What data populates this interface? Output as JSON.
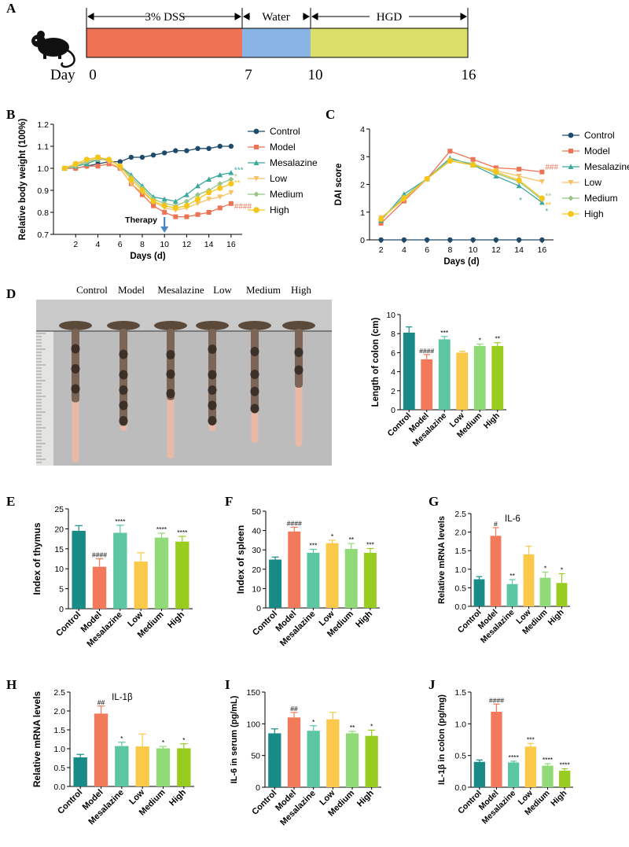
{
  "panels": {
    "A": "A",
    "B": "B",
    "C": "C",
    "D": "D",
    "E": "E",
    "F": "F",
    "G": "G",
    "H": "H",
    "I": "I",
    "J": "J"
  },
  "timeline": {
    "phase1": "3% DSS",
    "phase2": "Water",
    "phase3": "HGD",
    "day_label": "Day",
    "days": [
      "0",
      "7",
      "10",
      "16"
    ],
    "colors": {
      "dss": "#EE7355",
      "water": "#89B4E6",
      "hgd": "#DCE069"
    }
  },
  "groups": [
    "Control",
    "Model",
    "Mesalazine",
    "Low",
    "Medium",
    "High"
  ],
  "group_colors": [
    "#1E4B6B",
    "#EE7355",
    "#3BA89C",
    "#F8C264",
    "#99C58A",
    "#F5C518"
  ],
  "bar_colors": [
    "#188B86",
    "#F27A5A",
    "#5CC6A2",
    "#FBC94A",
    "#90DB77",
    "#98CC1E"
  ],
  "photo": {
    "labels": [
      "Control",
      "Model",
      "Mesalazine",
      "Low",
      "Medium",
      "High"
    ]
  },
  "chart_data": [
    {
      "id": "B",
      "type": "line",
      "title": "",
      "xlabel": "Days (d)",
      "ylabel": "Relative body weight (100%)",
      "xlim": [
        0,
        17
      ],
      "ylim": [
        0.7,
        1.2
      ],
      "xticks": [
        2,
        4,
        6,
        8,
        10,
        12,
        14,
        16
      ],
      "yticks": [
        0.7,
        0.8,
        0.9,
        1.0,
        1.1,
        1.2
      ],
      "ytick_labels": [
        "0.7",
        "0.8",
        "0.9",
        "1.0",
        "1.1",
        "1.2"
      ],
      "x": [
        1,
        2,
        3,
        4,
        5,
        6,
        7,
        8,
        9,
        10,
        11,
        12,
        13,
        14,
        15,
        16
      ],
      "series": [
        {
          "name": "Control",
          "values": [
            1.0,
            1.0,
            1.01,
            1.02,
            1.03,
            1.03,
            1.05,
            1.05,
            1.06,
            1.07,
            1.08,
            1.08,
            1.09,
            1.09,
            1.1,
            1.1
          ]
        },
        {
          "name": "Model",
          "values": [
            1.0,
            1.0,
            1.01,
            1.01,
            1.02,
            1.0,
            0.93,
            0.88,
            0.83,
            0.8,
            0.78,
            0.78,
            0.79,
            0.8,
            0.82,
            0.84
          ]
        },
        {
          "name": "Mesalazine",
          "values": [
            1.0,
            1.01,
            1.02,
            1.04,
            1.04,
            1.01,
            0.97,
            0.92,
            0.87,
            0.86,
            0.85,
            0.88,
            0.92,
            0.95,
            0.97,
            0.98
          ]
        },
        {
          "name": "Low",
          "values": [
            1.0,
            1.02,
            1.03,
            1.05,
            1.03,
            1.0,
            0.93,
            0.89,
            0.85,
            0.82,
            0.81,
            0.82,
            0.84,
            0.86,
            0.87,
            0.89
          ]
        },
        {
          "name": "Medium",
          "values": [
            1.0,
            1.01,
            1.03,
            1.04,
            1.04,
            1.01,
            0.96,
            0.91,
            0.86,
            0.84,
            0.83,
            0.85,
            0.88,
            0.9,
            0.93,
            0.95
          ]
        },
        {
          "name": "High",
          "values": [
            1.0,
            1.02,
            1.04,
            1.05,
            1.04,
            1.01,
            0.95,
            0.9,
            0.85,
            0.83,
            0.82,
            0.83,
            0.86,
            0.89,
            0.91,
            0.93
          ]
        }
      ],
      "annotations": {
        "therapy": "Therapy",
        "sig": [
          {
            "text": "***",
            "series": "Mesalazine",
            "y": 0.995
          },
          {
            "text": "*",
            "series": "Medium",
            "y": 0.965
          },
          {
            "text": "**",
            "series": "High",
            "y": 0.935
          },
          {
            "text": "####",
            "series": "Model",
            "y": 0.83
          }
        ]
      }
    },
    {
      "id": "C",
      "type": "line",
      "title": "",
      "xlabel": "Days (d)",
      "ylabel": "DAI score",
      "xlim": [
        1,
        17
      ],
      "ylim": [
        0,
        4
      ],
      "xticks": [
        2,
        4,
        6,
        8,
        10,
        12,
        14,
        16
      ],
      "yticks": [
        0,
        1,
        2,
        3,
        4
      ],
      "x": [
        2,
        4,
        6,
        8,
        10,
        12,
        14,
        16
      ],
      "series": [
        {
          "name": "Control",
          "values": [
            0,
            0,
            0,
            0,
            0,
            0,
            0,
            0
          ]
        },
        {
          "name": "Model",
          "values": [
            0.6,
            1.4,
            2.2,
            3.2,
            2.9,
            2.6,
            2.55,
            2.45
          ]
        },
        {
          "name": "Mesalazine",
          "values": [
            0.7,
            1.65,
            2.2,
            2.95,
            2.7,
            2.3,
            1.95,
            1.35
          ]
        },
        {
          "name": "Low",
          "values": [
            0.8,
            1.45,
            2.2,
            2.85,
            2.7,
            2.5,
            2.3,
            2.1
          ]
        },
        {
          "name": "Medium",
          "values": [
            0.75,
            1.55,
            2.2,
            2.9,
            2.75,
            2.4,
            2.1,
            1.45
          ]
        },
        {
          "name": "High",
          "values": [
            0.75,
            1.5,
            2.2,
            2.85,
            2.7,
            2.45,
            2.15,
            1.5
          ]
        }
      ],
      "annotations": {
        "sig": [
          {
            "text": "###",
            "series": "Model",
            "y": 2.65
          },
          {
            "text": "**",
            "series": "Medium",
            "y": 1.6
          },
          {
            "text": "**",
            "series": "High",
            "y": 1.28
          },
          {
            "text": "*",
            "series": "Mesalazine",
            "y": 1.05
          },
          {
            "text": "*",
            "series": "Mesalazine",
            "y": 1.45,
            "x": 14
          }
        ]
      }
    },
    {
      "id": "D",
      "type": "bar",
      "ylabel": "Length of colon (cm)",
      "ylim": [
        0,
        10
      ],
      "yticks": [
        0,
        2,
        4,
        6,
        8,
        10
      ],
      "categories": [
        "Control",
        "Model",
        "Mesalazine",
        "Low",
        "Medium",
        "High"
      ],
      "values": [
        8.1,
        5.3,
        7.4,
        6.0,
        6.7,
        6.7
      ],
      "errors": [
        0.6,
        0.5,
        0.3,
        0.15,
        0.2,
        0.35
      ],
      "sig": [
        "",
        "####",
        "***",
        "",
        "*",
        "**"
      ]
    },
    {
      "id": "E",
      "type": "bar",
      "ylabel": "Index of thymus",
      "ylim": [
        0,
        25
      ],
      "yticks": [
        0,
        5,
        10,
        15,
        20,
        25
      ],
      "categories": [
        "Control",
        "Model",
        "Mesalazine",
        "Low",
        "Medium",
        "High"
      ],
      "values": [
        19.5,
        10.5,
        19.0,
        11.8,
        17.8,
        16.8
      ],
      "errors": [
        1.3,
        2.0,
        1.9,
        2.2,
        1.1,
        1.3
      ],
      "sig": [
        "",
        "####",
        "****",
        "",
        "****",
        "****"
      ]
    },
    {
      "id": "F",
      "type": "bar",
      "ylabel": "Index of spleen",
      "ylim": [
        0,
        50
      ],
      "yticks": [
        0,
        10,
        20,
        30,
        40,
        50
      ],
      "categories": [
        "Control",
        "Model",
        "Mesalazine",
        "Low",
        "Medium",
        "High"
      ],
      "values": [
        25,
        39.5,
        28.5,
        33.5,
        30.5,
        28.5
      ],
      "errors": [
        1.3,
        2.2,
        1.8,
        1.5,
        2.8,
        2.2
      ],
      "sig": [
        "",
        "####",
        "***",
        "*",
        "**",
        "***"
      ]
    },
    {
      "id": "G",
      "type": "bar",
      "title": "IL-6",
      "ylabel": "Relative mRNA levels",
      "ylim": [
        0,
        2.5
      ],
      "yticks": [
        0,
        0.5,
        1.0,
        1.5,
        2.0,
        2.5
      ],
      "ytick_labels": [
        "0.0",
        "0.5",
        "1.0",
        "1.5",
        "2.0",
        "2.5"
      ],
      "categories": [
        "Control",
        "Model",
        "Mesalazine",
        "Low",
        "Medium",
        "High"
      ],
      "values": [
        0.73,
        1.9,
        0.6,
        1.4,
        0.77,
        0.63
      ],
      "errors": [
        0.07,
        0.22,
        0.12,
        0.22,
        0.15,
        0.25
      ],
      "sig": [
        "",
        "#",
        "**",
        "",
        "*",
        "*"
      ]
    },
    {
      "id": "H",
      "type": "bar",
      "title": "IL-1β",
      "ylabel": "Relative mRNA levels",
      "ylim": [
        0,
        2.5
      ],
      "yticks": [
        0,
        0.5,
        1.0,
        1.5,
        2.0,
        2.5
      ],
      "ytick_labels": [
        "0.0",
        "0.5",
        "1.0",
        "1.5",
        "2.0",
        "2.5"
      ],
      "categories": [
        "Control",
        "Model",
        "Mesalazine",
        "Low",
        "Medium",
        "High"
      ],
      "values": [
        0.77,
        1.93,
        1.07,
        1.06,
        1.01,
        1.01
      ],
      "errors": [
        0.08,
        0.2,
        0.1,
        0.33,
        0.05,
        0.12
      ],
      "sig": [
        "",
        "##",
        "*",
        "",
        "*",
        "*"
      ]
    },
    {
      "id": "I",
      "type": "bar",
      "ylabel": "IL-6 in serum (pg/mL)",
      "ylim": [
        0,
        150
      ],
      "yticks": [
        0,
        50,
        100,
        150
      ],
      "categories": [
        "Control",
        "Model",
        "Mesalazine",
        "Low",
        "Medium",
        "High"
      ],
      "values": [
        85,
        110,
        89,
        107,
        85,
        81
      ],
      "errors": [
        7,
        8,
        8,
        11,
        3,
        9
      ],
      "sig": [
        "",
        "##",
        "*",
        "",
        "**",
        "*"
      ]
    },
    {
      "id": "J",
      "type": "bar",
      "ylabel": "IL-1β in colon (pg/mg)",
      "ylim": [
        0,
        1.5
      ],
      "yticks": [
        0,
        0.5,
        1.0,
        1.5
      ],
      "ytick_labels": [
        "0.0",
        "0.5",
        "1.0",
        "1.5"
      ],
      "categories": [
        "Control",
        "Model",
        "Mesalazine",
        "Low",
        "Medium",
        "High"
      ],
      "values": [
        0.4,
        1.19,
        0.39,
        0.64,
        0.34,
        0.26
      ],
      "errors": [
        0.03,
        0.12,
        0.02,
        0.05,
        0.03,
        0.03
      ],
      "sig": [
        "",
        "####",
        "****",
        "***",
        "****",
        "****"
      ]
    }
  ]
}
